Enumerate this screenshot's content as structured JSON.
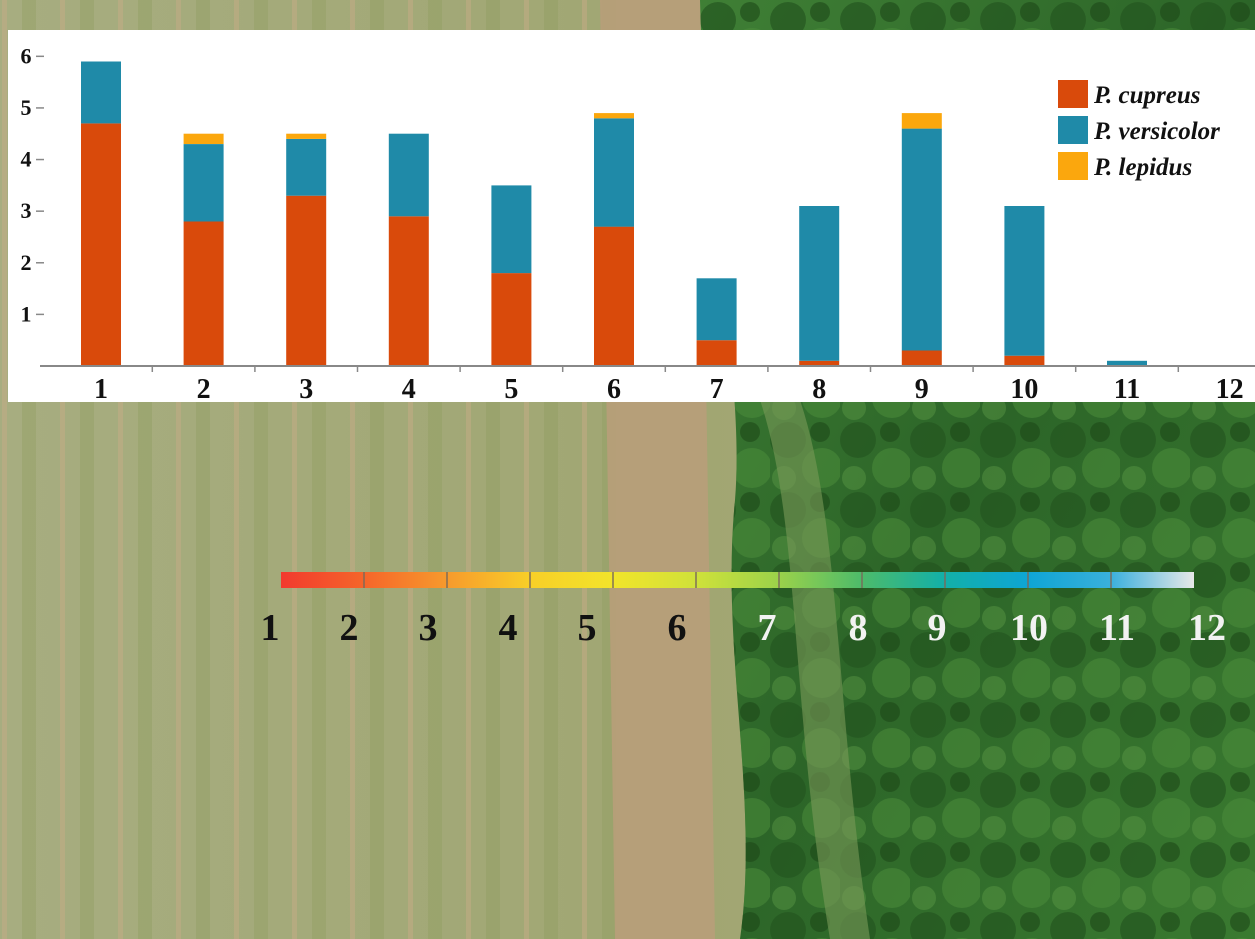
{
  "chart_data": {
    "type": "bar",
    "stacked": true,
    "categories": [
      "1",
      "2",
      "3",
      "4",
      "5",
      "6",
      "7",
      "8",
      "9",
      "10",
      "11",
      "12"
    ],
    "series": [
      {
        "name": "P. cupreus",
        "color": "#d94a0b",
        "values": [
          4.7,
          2.8,
          3.3,
          2.9,
          1.8,
          2.7,
          0.5,
          0.1,
          0.3,
          0.2,
          0,
          0
        ]
      },
      {
        "name": "P. versicolor",
        "color": "#1f8aa8",
        "values": [
          1.2,
          1.5,
          1.1,
          1.6,
          1.7,
          2.1,
          1.2,
          3.0,
          4.3,
          2.9,
          0.1,
          0
        ]
      },
      {
        "name": "P. lepidus",
        "color": "#fba70d",
        "values": [
          0,
          0.2,
          0.1,
          0,
          0,
          0.1,
          0,
          0,
          0.3,
          0,
          0,
          0
        ]
      }
    ],
    "yticks": [
      "1",
      "2",
      "3",
      "4",
      "5",
      "6"
    ],
    "ylim": [
      0,
      6.2
    ],
    "legend_position": "top-right",
    "grid": false
  },
  "scale_bar": {
    "labels": [
      "1",
      "2",
      "3",
      "4",
      "5",
      "6",
      "7",
      "8",
      "9",
      "10",
      "11",
      "12"
    ],
    "label_colors": [
      "#111111",
      "#111111",
      "#111111",
      "#111111",
      "#111111",
      "#111111",
      "#f2f2f2",
      "#f2f2f2",
      "#f2f2f2",
      "#f2f2f2",
      "#f2f2f2",
      "#f2f2f2"
    ],
    "gradient_colors": [
      "#f23a2e",
      "#f5652a",
      "#f79a2c",
      "#f8cf28",
      "#f2e42a",
      "#cfe13a",
      "#9bd24a",
      "#4dbb6a",
      "#12b0a8",
      "#0ea5d4",
      "#3ab0dc",
      "#e8e8e8"
    ]
  },
  "background": {
    "type": "aerial-photo",
    "field_color": "#9fa372",
    "path_color": "#b39a76",
    "forest_color": "#2e6a2a"
  }
}
